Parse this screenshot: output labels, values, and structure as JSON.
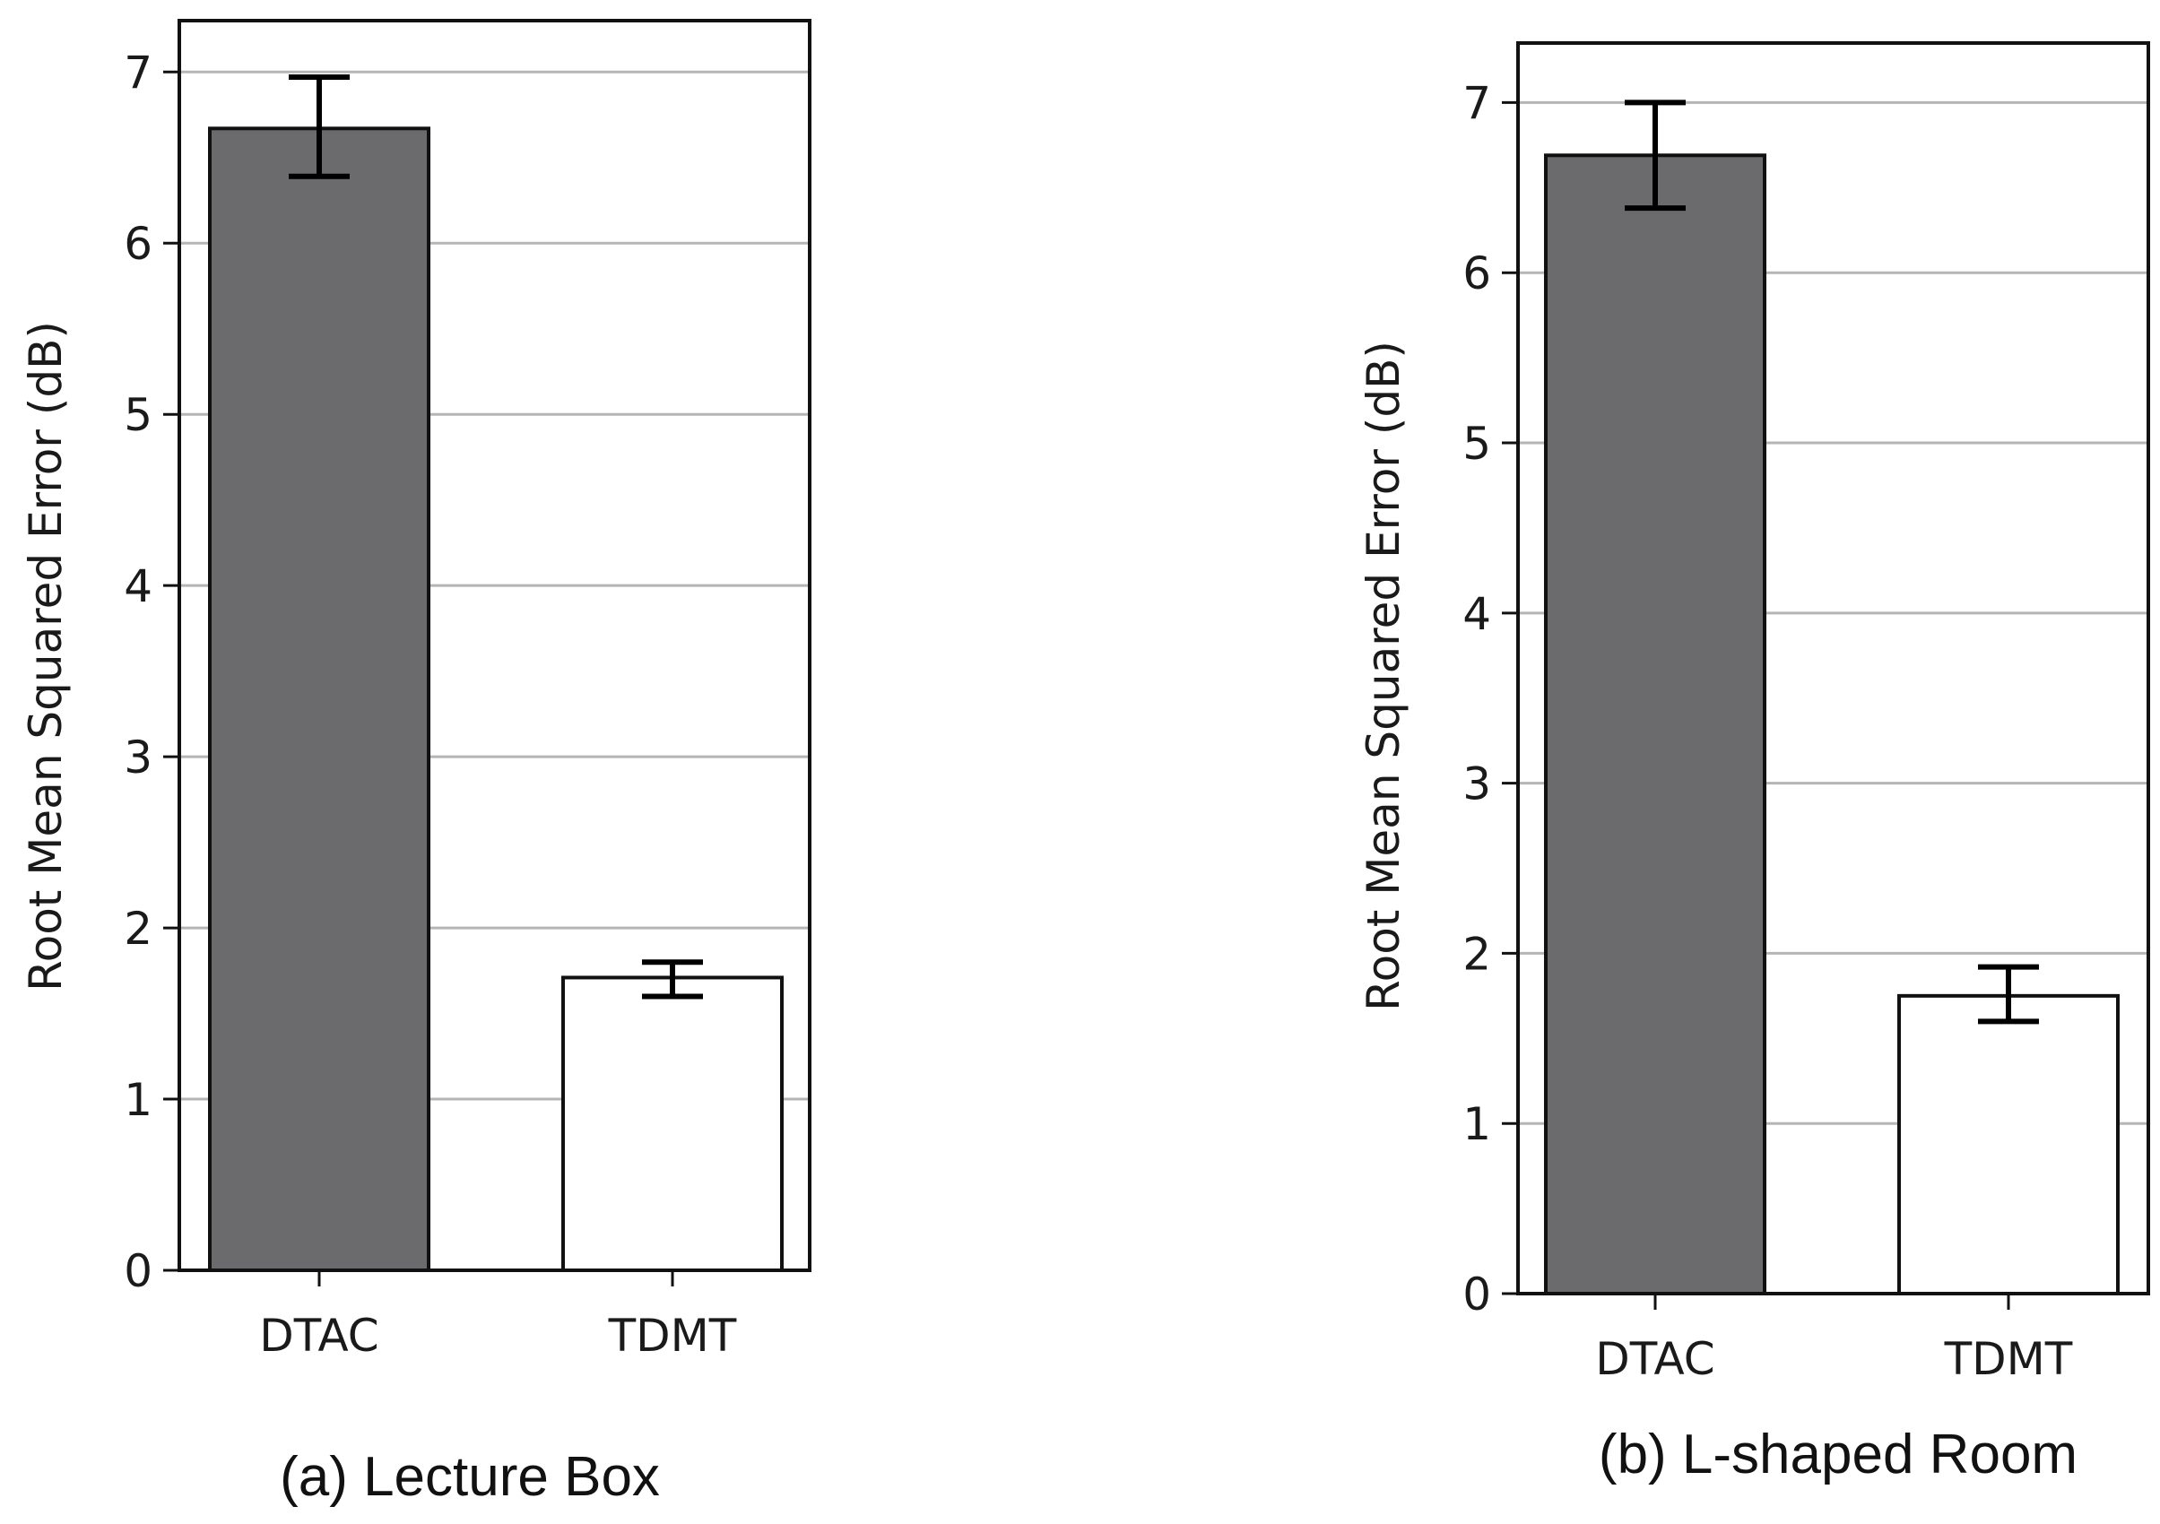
{
  "chart_data": [
    {
      "type": "bar",
      "caption": "(a) Lecture Box",
      "ylabel": "Root Mean Squared Error (dB)",
      "ylim": [
        0,
        7.3
      ],
      "yticks": [
        "0",
        "1",
        "2",
        "3",
        "4",
        "5",
        "6",
        "7"
      ],
      "grid": "horizontal",
      "categories": [
        "DTAC",
        "TDMT"
      ],
      "values": [
        6.67,
        1.71
      ],
      "error_low": [
        6.39,
        1.6
      ],
      "error_high": [
        6.97,
        1.8
      ],
      "bar_colors": [
        "#6b6b6e",
        "#ffffff"
      ]
    },
    {
      "type": "bar",
      "caption": "(b) L-shaped Room",
      "ylabel": "Root Mean Squared Error (dB)",
      "ylim": [
        0,
        7.35
      ],
      "yticks": [
        "0",
        "1",
        "2",
        "3",
        "4",
        "5",
        "6",
        "7"
      ],
      "grid": "horizontal",
      "categories": [
        "DTAC",
        "TDMT"
      ],
      "values": [
        6.69,
        1.75
      ],
      "error_low": [
        6.38,
        1.6
      ],
      "error_high": [
        7.0,
        1.92
      ],
      "bar_colors": [
        "#6b6b6e",
        "#ffffff"
      ]
    }
  ]
}
